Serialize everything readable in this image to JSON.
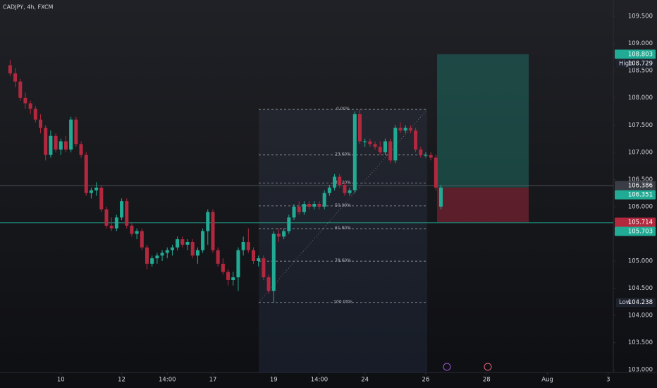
{
  "chart_data": {
    "type": "candlestick",
    "title": "CADJPY, 4h, FXCM",
    "up_color": "#22ab94",
    "down_color": "#b2283f",
    "grid": false,
    "open": [
      108.6,
      108.45,
      108.3,
      108.0,
      107.9,
      107.8,
      107.6,
      107.45,
      106.95,
      107.3,
      107.05,
      107.2,
      107.05,
      107.6,
      107.15,
      106.95,
      106.25,
      106.3,
      106.35,
      105.95,
      105.65,
      105.6,
      105.8,
      106.1,
      105.65,
      105.5,
      105.55,
      105.25,
      104.95,
      105.05,
      105.1,
      105.15,
      105.2,
      105.25,
      105.4,
      105.3,
      105.35,
      105.1,
      105.2,
      105.55,
      105.9,
      105.2,
      104.95,
      104.8,
      104.65,
      104.7,
      105.2,
      105.35,
      105.2,
      105.0,
      105.05,
      104.7,
      104.45,
      105.5,
      105.45,
      105.55,
      105.8,
      106.0,
      105.9,
      106.05,
      106.0,
      106.05,
      106.0,
      106.25,
      106.35,
      106.55,
      106.4,
      106.25,
      106.3,
      107.7,
      107.2,
      107.2,
      107.15,
      107.1,
      107.0,
      107.2,
      106.85,
      107.45,
      107.4,
      107.45,
      107.4,
      107.05,
      106.95,
      106.95,
      106.9,
      106.0
    ],
    "high": [
      108.7,
      108.55,
      108.35,
      108.1,
      107.95,
      107.85,
      107.7,
      107.5,
      107.4,
      107.35,
      107.25,
      107.3,
      107.65,
      107.65,
      107.2,
      107.0,
      106.35,
      106.45,
      106.4,
      106.0,
      105.8,
      105.85,
      106.15,
      106.15,
      105.7,
      105.6,
      105.6,
      105.3,
      105.1,
      105.15,
      105.2,
      105.25,
      105.3,
      105.45,
      105.45,
      105.4,
      105.4,
      105.25,
      105.6,
      105.95,
      105.95,
      105.25,
      105.05,
      104.85,
      104.8,
      105.25,
      105.45,
      105.6,
      105.25,
      105.1,
      105.1,
      104.75,
      105.55,
      105.6,
      105.6,
      105.85,
      106.05,
      106.1,
      106.1,
      106.1,
      106.1,
      106.1,
      106.3,
      106.4,
      106.6,
      106.6,
      106.45,
      106.35,
      107.75,
      107.788,
      107.25,
      107.25,
      107.2,
      107.2,
      107.25,
      107.25,
      107.5,
      107.55,
      107.5,
      107.5,
      107.45,
      107.1,
      107.0,
      107.0,
      106.95,
      106.4
    ],
    "low": [
      108.4,
      108.2,
      107.95,
      107.8,
      107.7,
      107.55,
      107.35,
      106.85,
      106.9,
      107.0,
      106.95,
      107.0,
      107.0,
      107.1,
      106.9,
      106.2,
      106.15,
      106.2,
      105.9,
      105.6,
      105.55,
      105.55,
      105.75,
      105.6,
      105.45,
      105.4,
      105.2,
      104.85,
      104.9,
      104.95,
      105.0,
      105.05,
      105.1,
      105.2,
      105.25,
      105.2,
      105.05,
      104.95,
      105.15,
      105.3,
      105.15,
      104.9,
      104.75,
      104.55,
      104.55,
      104.45,
      105.1,
      105.15,
      104.95,
      104.9,
      104.65,
      104.4,
      104.238,
      105.35,
      105.4,
      105.5,
      105.75,
      105.85,
      105.85,
      105.95,
      105.95,
      105.95,
      105.95,
      106.2,
      106.3,
      106.35,
      106.2,
      106.2,
      106.25,
      107.15,
      107.1,
      107.1,
      107.05,
      106.95,
      106.95,
      106.8,
      106.8,
      107.35,
      107.35,
      107.35,
      107.0,
      106.9,
      106.9,
      106.85,
      106.3,
      105.95
    ],
    "close": [
      108.45,
      108.3,
      108.0,
      107.9,
      107.8,
      107.6,
      107.45,
      106.95,
      107.3,
      107.05,
      107.2,
      107.05,
      107.6,
      107.15,
      106.95,
      106.25,
      106.3,
      106.35,
      105.95,
      105.65,
      105.6,
      105.8,
      106.1,
      105.65,
      105.5,
      105.55,
      105.25,
      104.95,
      105.05,
      105.1,
      105.15,
      105.2,
      105.25,
      105.4,
      105.3,
      105.35,
      105.1,
      105.2,
      105.55,
      105.9,
      105.2,
      104.95,
      104.8,
      104.65,
      104.7,
      105.2,
      105.35,
      105.2,
      105.0,
      105.05,
      104.7,
      104.45,
      105.5,
      105.45,
      105.55,
      105.8,
      106.0,
      105.9,
      106.05,
      106.0,
      106.05,
      106.0,
      106.25,
      106.35,
      106.55,
      106.4,
      106.25,
      106.3,
      107.7,
      107.2,
      107.2,
      107.15,
      107.1,
      107.0,
      107.2,
      106.85,
      107.45,
      107.4,
      107.45,
      107.4,
      107.05,
      106.95,
      106.95,
      106.9,
      106.35,
      106.351
    ],
    "xlim": [
      -2,
      119
    ],
    "xticks": [
      {
        "value": 10,
        "label": "10"
      },
      {
        "value": 22,
        "label": "12"
      },
      {
        "value": 31,
        "label": "14:00"
      },
      {
        "value": 40,
        "label": "17"
      },
      {
        "value": 52,
        "label": "19"
      },
      {
        "value": 61,
        "label": "14:00"
      },
      {
        "value": 70,
        "label": "24"
      },
      {
        "value": 82,
        "label": "26"
      },
      {
        "value": 94,
        "label": "28"
      },
      {
        "value": 106,
        "label": "Aug"
      },
      {
        "value": 118,
        "label": "3"
      }
    ],
    "ylim": [
      102.95,
      109.8
    ],
    "yticks": [
      {
        "value": 103.0,
        "label": "103.000"
      },
      {
        "value": 103.5,
        "label": "103.500"
      },
      {
        "value": 104.0,
        "label": "104.000"
      },
      {
        "value": 104.5,
        "label": "104.500"
      },
      {
        "value": 105.0,
        "label": "105.000"
      },
      {
        "value": 105.5,
        "label": "105.500"
      },
      {
        "value": 106.0,
        "label": "106.000"
      },
      {
        "value": 106.5,
        "label": "106.500"
      },
      {
        "value": 107.0,
        "label": "107.000"
      },
      {
        "value": 107.5,
        "label": "107.500"
      },
      {
        "value": 108.0,
        "label": "108.000"
      },
      {
        "value": 108.5,
        "label": "108.500"
      },
      {
        "value": 109.0,
        "label": "109.000"
      },
      {
        "value": 109.5,
        "label": "109.500"
      }
    ],
    "fib": {
      "high": 107.788,
      "low": 104.238,
      "levels": [
        {
          "value": 0,
          "label": "0.00%"
        },
        {
          "value": 23.6,
          "label": "23.60%"
        },
        {
          "value": 38.2,
          "label": "38.20%"
        },
        {
          "value": 50,
          "label": "50.00%"
        },
        {
          "value": 61.8,
          "label": "61.80%"
        },
        {
          "value": 78.6,
          "label": "78.60%"
        },
        {
          "value": 100,
          "label": "100.00%"
        }
      ]
    },
    "position": {
      "target": 108.803,
      "entry": 106.351,
      "stop": 105.714,
      "target_color": "#22ab94",
      "entry_color": "#22ab94",
      "stop_color": "#b2283f"
    },
    "markers": [
      {
        "value": 108.729,
        "tag": "High",
        "color": "#1e222d"
      },
      {
        "value": 106.386,
        "color": "#3a3d45",
        "line": true
      },
      {
        "value": 105.703,
        "color": "#22ab94",
        "line": true
      },
      {
        "value": 104.238,
        "tag": "Low",
        "color": "#1e222d"
      }
    ]
  }
}
